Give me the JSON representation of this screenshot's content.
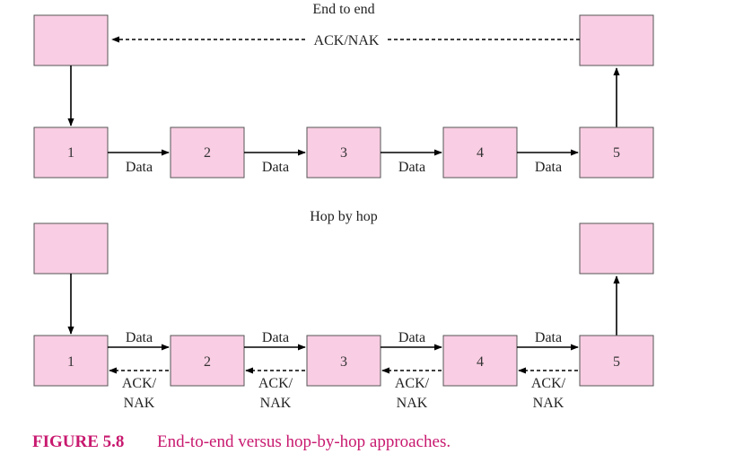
{
  "top": {
    "title": "End to end",
    "ack_label": "ACK/NAK",
    "nodes": [
      "1",
      "2",
      "3",
      "4",
      "5"
    ],
    "data_labels": [
      "Data",
      "Data",
      "Data",
      "Data"
    ]
  },
  "bottom": {
    "title": "Hop by hop",
    "nodes": [
      "1",
      "2",
      "3",
      "4",
      "5"
    ],
    "data_labels": [
      "Data",
      "Data",
      "Data",
      "Data"
    ],
    "ack_line1": [
      "ACK/",
      "ACK/",
      "ACK/",
      "ACK/"
    ],
    "ack_line2": [
      "NAK",
      "NAK",
      "NAK",
      "NAK"
    ]
  },
  "caption": {
    "label": "FIGURE 5.8",
    "text": "End-to-end versus hop-by-hop approaches."
  },
  "colors": {
    "box_fill": "#f9cde3",
    "caption": "#c8196f"
  }
}
